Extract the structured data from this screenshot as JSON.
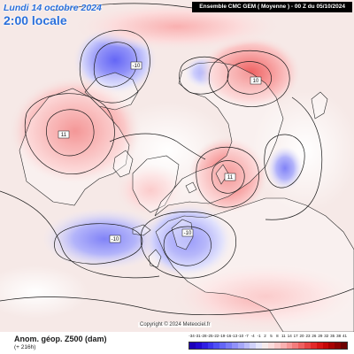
{
  "header": {
    "date": "Lundi 14 octobre 2024",
    "local_time": "2:00 locale",
    "model_info": "Ensemble CMC GEM  ( Moyenne )  -  00 Z du 05/10/2024"
  },
  "footer": {
    "field": "Anom. géop. Z500 (dam)",
    "lead_time": "(+ 216h)",
    "copyright": "Copyright © 2024 Meteociel.fr"
  },
  "legend": {
    "ticks": [
      "-34",
      "-31",
      "-28",
      "-25",
      "-22",
      "-19",
      "-16",
      "-13",
      "-10",
      "-7",
      "-4",
      "-1",
      "2",
      "5",
      "8",
      "11",
      "14",
      "17",
      "20",
      "23",
      "26",
      "29",
      "32",
      "35",
      "38",
      "41"
    ],
    "colors": [
      "#1b00b8",
      "#2209d0",
      "#2f1ee2",
      "#3d36ee",
      "#4f4ff4",
      "#6466f6",
      "#7a7cf7",
      "#9091f8",
      "#a6a7f9",
      "#bcbdfa",
      "#d1d2fb",
      "#e6e6fc",
      "#f6ebeb",
      "#fcdcdc",
      "#fbc8c8",
      "#f9b0b0",
      "#f69797",
      "#f27c7c",
      "#ee6060",
      "#e84444",
      "#e22a2a",
      "#d61515",
      "#c40808",
      "#a80000",
      "#8a0000",
      "#6c0000"
    ]
  },
  "anomaly_labels": [
    {
      "text": "-10",
      "id": "bering-low"
    },
    {
      "text": "11",
      "id": "canada-high"
    },
    {
      "text": "10",
      "id": "siberia-high"
    },
    {
      "text": "11",
      "id": "arctic-high"
    },
    {
      "text": "-10",
      "id": "atlantic-low"
    },
    {
      "text": "-10",
      "id": "europe-low"
    }
  ],
  "map_colors": {
    "ocean": "#f6e9e7",
    "land": "#ffffff",
    "coast": "#2a2a2a",
    "contour": "#1a1a1a"
  }
}
